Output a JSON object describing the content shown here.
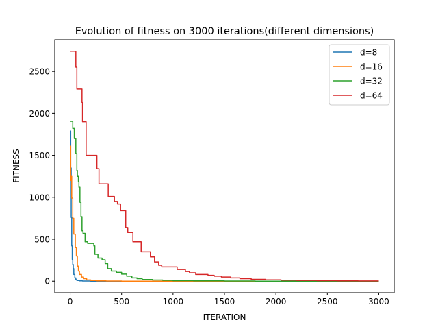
{
  "chart_data": {
    "type": "line",
    "title": "Evolution of fitness on 3000 iterations(different dimensions)",
    "xlabel": "ITERATION",
    "ylabel": "FITNESS",
    "xlim": [
      -150,
      3150
    ],
    "ylim": [
      -137,
      2877
    ],
    "xticks": [
      0,
      500,
      1000,
      1500,
      2000,
      2500,
      3000
    ],
    "yticks": [
      0,
      500,
      1000,
      1500,
      2000,
      2500
    ],
    "grid": false,
    "legend_position": "top-right",
    "series": [
      {
        "name": "d=8",
        "color": "#1f77b4",
        "points": [
          [
            0,
            1790
          ],
          [
            5,
            1790
          ],
          [
            5,
            1350
          ],
          [
            10,
            1350
          ],
          [
            10,
            760
          ],
          [
            15,
            760
          ],
          [
            15,
            420
          ],
          [
            20,
            420
          ],
          [
            20,
            260
          ],
          [
            25,
            260
          ],
          [
            25,
            200
          ],
          [
            30,
            200
          ],
          [
            30,
            150
          ],
          [
            35,
            150
          ],
          [
            35,
            80
          ],
          [
            45,
            80
          ],
          [
            45,
            40
          ],
          [
            55,
            40
          ],
          [
            55,
            18
          ],
          [
            65,
            18
          ],
          [
            65,
            8
          ],
          [
            90,
            8
          ],
          [
            90,
            4
          ],
          [
            120,
            4
          ],
          [
            120,
            2
          ],
          [
            200,
            2
          ],
          [
            200,
            0
          ],
          [
            3000,
            0
          ]
        ]
      },
      {
        "name": "d=16",
        "color": "#ff7f0e",
        "points": [
          [
            0,
            1610
          ],
          [
            5,
            1610
          ],
          [
            5,
            1200
          ],
          [
            10,
            1200
          ],
          [
            10,
            1250
          ],
          [
            15,
            1250
          ],
          [
            15,
            990
          ],
          [
            25,
            990
          ],
          [
            25,
            750
          ],
          [
            35,
            750
          ],
          [
            35,
            560
          ],
          [
            50,
            560
          ],
          [
            50,
            400
          ],
          [
            60,
            400
          ],
          [
            60,
            300
          ],
          [
            70,
            300
          ],
          [
            70,
            180
          ],
          [
            80,
            180
          ],
          [
            80,
            120
          ],
          [
            90,
            120
          ],
          [
            90,
            80
          ],
          [
            110,
            80
          ],
          [
            110,
            50
          ],
          [
            130,
            50
          ],
          [
            130,
            30
          ],
          [
            160,
            30
          ],
          [
            160,
            15
          ],
          [
            200,
            15
          ],
          [
            200,
            8
          ],
          [
            260,
            8
          ],
          [
            260,
            4
          ],
          [
            350,
            4
          ],
          [
            350,
            2
          ],
          [
            500,
            2
          ],
          [
            500,
            0
          ],
          [
            3000,
            0
          ]
        ]
      },
      {
        "name": "d=32",
        "color": "#2ca02c",
        "points": [
          [
            0,
            1905
          ],
          [
            25,
            1905
          ],
          [
            25,
            1820
          ],
          [
            40,
            1820
          ],
          [
            40,
            1700
          ],
          [
            55,
            1700
          ],
          [
            55,
            1520
          ],
          [
            65,
            1520
          ],
          [
            65,
            1320
          ],
          [
            70,
            1320
          ],
          [
            70,
            1250
          ],
          [
            80,
            1250
          ],
          [
            80,
            1190
          ],
          [
            85,
            1190
          ],
          [
            85,
            1120
          ],
          [
            95,
            1120
          ],
          [
            95,
            940
          ],
          [
            105,
            940
          ],
          [
            105,
            770
          ],
          [
            115,
            770
          ],
          [
            115,
            600
          ],
          [
            125,
            600
          ],
          [
            125,
            570
          ],
          [
            145,
            570
          ],
          [
            145,
            470
          ],
          [
            170,
            470
          ],
          [
            170,
            450
          ],
          [
            230,
            450
          ],
          [
            230,
            420
          ],
          [
            240,
            420
          ],
          [
            240,
            320
          ],
          [
            270,
            320
          ],
          [
            270,
            275
          ],
          [
            310,
            275
          ],
          [
            310,
            255
          ],
          [
            340,
            255
          ],
          [
            340,
            210
          ],
          [
            365,
            210
          ],
          [
            365,
            150
          ],
          [
            400,
            150
          ],
          [
            400,
            120
          ],
          [
            450,
            120
          ],
          [
            450,
            105
          ],
          [
            500,
            105
          ],
          [
            500,
            85
          ],
          [
            550,
            85
          ],
          [
            550,
            60
          ],
          [
            600,
            60
          ],
          [
            600,
            40
          ],
          [
            650,
            40
          ],
          [
            650,
            30
          ],
          [
            700,
            30
          ],
          [
            700,
            20
          ],
          [
            800,
            20
          ],
          [
            800,
            14
          ],
          [
            900,
            14
          ],
          [
            900,
            10
          ],
          [
            1000,
            10
          ],
          [
            1000,
            6
          ],
          [
            1200,
            6
          ],
          [
            1200,
            4
          ],
          [
            1500,
            4
          ],
          [
            1500,
            2
          ],
          [
            1800,
            2
          ],
          [
            1800,
            0
          ],
          [
            3000,
            0
          ]
        ]
      },
      {
        "name": "d=64",
        "color": "#d62728",
        "points": [
          [
            0,
            2740
          ],
          [
            55,
            2740
          ],
          [
            55,
            2550
          ],
          [
            65,
            2550
          ],
          [
            65,
            2290
          ],
          [
            115,
            2290
          ],
          [
            115,
            2130
          ],
          [
            120,
            2130
          ],
          [
            120,
            1900
          ],
          [
            155,
            1900
          ],
          [
            155,
            1500
          ],
          [
            260,
            1500
          ],
          [
            260,
            1340
          ],
          [
            280,
            1340
          ],
          [
            280,
            1160
          ],
          [
            370,
            1160
          ],
          [
            370,
            1010
          ],
          [
            430,
            1010
          ],
          [
            430,
            950
          ],
          [
            460,
            950
          ],
          [
            460,
            920
          ],
          [
            490,
            920
          ],
          [
            490,
            840
          ],
          [
            540,
            840
          ],
          [
            540,
            640
          ],
          [
            560,
            640
          ],
          [
            560,
            580
          ],
          [
            610,
            580
          ],
          [
            610,
            470
          ],
          [
            690,
            470
          ],
          [
            690,
            350
          ],
          [
            780,
            350
          ],
          [
            780,
            290
          ],
          [
            820,
            290
          ],
          [
            820,
            230
          ],
          [
            860,
            230
          ],
          [
            860,
            190
          ],
          [
            890,
            190
          ],
          [
            890,
            170
          ],
          [
            1040,
            170
          ],
          [
            1040,
            140
          ],
          [
            1120,
            140
          ],
          [
            1120,
            115
          ],
          [
            1160,
            115
          ],
          [
            1160,
            100
          ],
          [
            1220,
            100
          ],
          [
            1220,
            80
          ],
          [
            1340,
            80
          ],
          [
            1340,
            70
          ],
          [
            1400,
            70
          ],
          [
            1400,
            60
          ],
          [
            1470,
            60
          ],
          [
            1470,
            50
          ],
          [
            1560,
            50
          ],
          [
            1560,
            40
          ],
          [
            1650,
            40
          ],
          [
            1650,
            30
          ],
          [
            1760,
            30
          ],
          [
            1760,
            22
          ],
          [
            1900,
            22
          ],
          [
            1900,
            16
          ],
          [
            2050,
            16
          ],
          [
            2050,
            12
          ],
          [
            2200,
            12
          ],
          [
            2200,
            9
          ],
          [
            2400,
            9
          ],
          [
            2400,
            6
          ],
          [
            2600,
            6
          ],
          [
            2600,
            4
          ],
          [
            2800,
            4
          ],
          [
            2800,
            3
          ],
          [
            3000,
            3
          ]
        ]
      }
    ]
  }
}
